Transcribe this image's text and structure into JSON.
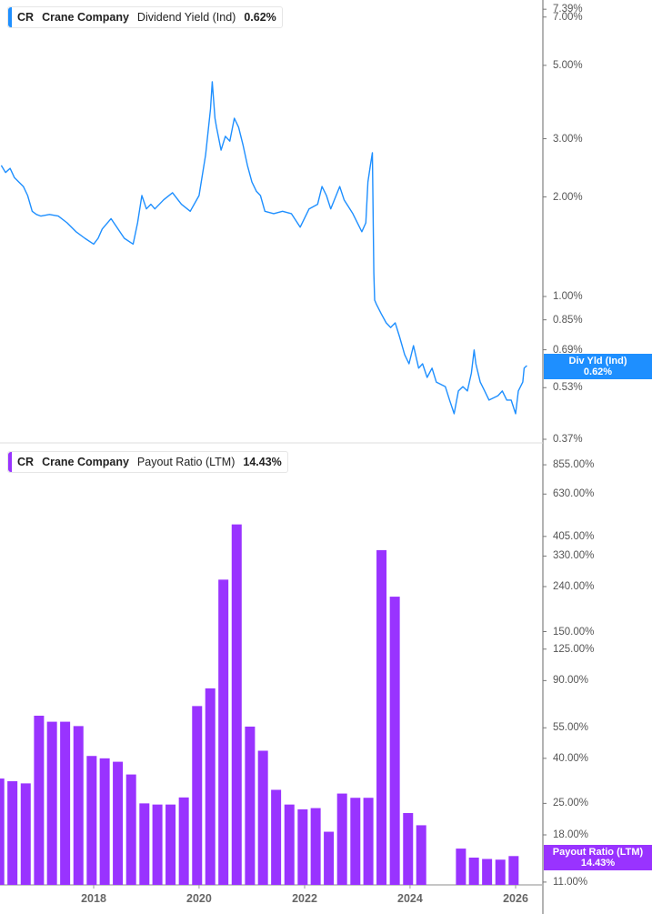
{
  "colors": {
    "yield": "#1e8fff",
    "payout": "#9933ff",
    "axis": "#b3b3b3"
  },
  "top_legend": {
    "ticker": "CR",
    "company": "Crane Company",
    "metric": "Dividend Yield (Ind)",
    "value": "0.62%"
  },
  "bottom_legend": {
    "ticker": "CR",
    "company": "Crane Company",
    "metric": "Payout Ratio (LTM)",
    "value": "14.43%"
  },
  "top_badge": {
    "label": "Div Yld (Ind)",
    "value": "0.62%"
  },
  "bottom_badge": {
    "label": "Payout Ratio (LTM)",
    "value": "14.43%"
  },
  "chart_data": [
    {
      "type": "line",
      "scale": "log",
      "ylim": [
        0.37,
        7.39
      ],
      "yticks": [
        "7.39%",
        "7.00%",
        "5.00%",
        "3.00%",
        "2.00%",
        "1.00%",
        "0.85%",
        "0.69%",
        "0.53%",
        "0.37%"
      ],
      "ytick_values": [
        7.39,
        7.0,
        5.0,
        3.0,
        2.0,
        1.0,
        0.85,
        0.69,
        0.53,
        0.37
      ],
      "series": [
        {
          "name": "Dividend Yield (Ind)",
          "points": [
            [
              "2016-04-01",
              2.49
            ],
            [
              "2016-05-01",
              2.37
            ],
            [
              "2016-06-01",
              2.44
            ],
            [
              "2016-07-01",
              2.29
            ],
            [
              "2016-08-01",
              2.22
            ],
            [
              "2016-09-01",
              2.15
            ],
            [
              "2016-10-01",
              2.02
            ],
            [
              "2016-11-01",
              1.81
            ],
            [
              "2016-12-01",
              1.77
            ],
            [
              "2017-01-01",
              1.75
            ],
            [
              "2017-03-01",
              1.77
            ],
            [
              "2017-05-01",
              1.75
            ],
            [
              "2017-07-01",
              1.67
            ],
            [
              "2017-09-01",
              1.57
            ],
            [
              "2017-11-01",
              1.5
            ],
            [
              "2018-01-01",
              1.44
            ],
            [
              "2018-02-01",
              1.5
            ],
            [
              "2018-03-01",
              1.6
            ],
            [
              "2018-05-01",
              1.72
            ],
            [
              "2018-08-01",
              1.5
            ],
            [
              "2018-10-01",
              1.44
            ],
            [
              "2018-11-01",
              1.67
            ],
            [
              "2018-12-01",
              2.02
            ],
            [
              "2019-01-01",
              1.84
            ],
            [
              "2019-02-01",
              1.9
            ],
            [
              "2019-03-01",
              1.84
            ],
            [
              "2019-05-01",
              1.96
            ],
            [
              "2019-07-01",
              2.06
            ],
            [
              "2019-09-01",
              1.9
            ],
            [
              "2019-11-01",
              1.81
            ],
            [
              "2020-01-01",
              2.02
            ],
            [
              "2020-02-15",
              2.68
            ],
            [
              "2020-03-20",
              3.69
            ],
            [
              "2020-04-01",
              4.46
            ],
            [
              "2020-04-20",
              3.46
            ],
            [
              "2020-05-01",
              3.25
            ],
            [
              "2020-06-01",
              2.77
            ],
            [
              "2020-07-01",
              3.05
            ],
            [
              "2020-08-01",
              2.95
            ],
            [
              "2020-09-01",
              3.46
            ],
            [
              "2020-10-01",
              3.25
            ],
            [
              "2020-11-01",
              2.86
            ],
            [
              "2020-12-01",
              2.49
            ],
            [
              "2021-01-01",
              2.22
            ],
            [
              "2021-02-01",
              2.08
            ],
            [
              "2021-03-01",
              2.02
            ],
            [
              "2021-04-01",
              1.81
            ],
            [
              "2021-06-01",
              1.78
            ],
            [
              "2021-08-01",
              1.81
            ],
            [
              "2021-10-01",
              1.78
            ],
            [
              "2021-12-01",
              1.62
            ],
            [
              "2022-02-01",
              1.84
            ],
            [
              "2022-04-01",
              1.9
            ],
            [
              "2022-05-01",
              2.15
            ],
            [
              "2022-06-01",
              2.02
            ],
            [
              "2022-07-01",
              1.84
            ],
            [
              "2022-09-01",
              2.15
            ],
            [
              "2022-10-01",
              1.96
            ],
            [
              "2022-12-01",
              1.78
            ],
            [
              "2023-02-01",
              1.57
            ],
            [
              "2023-03-01",
              1.67
            ],
            [
              "2023-03-15",
              2.22
            ],
            [
              "2023-04-01",
              2.49
            ],
            [
              "2023-04-15",
              2.72
            ],
            [
              "2023-04-25",
              1.18
            ],
            [
              "2023-05-01",
              0.975
            ],
            [
              "2023-05-15",
              0.944
            ],
            [
              "2023-06-15",
              0.887
            ],
            [
              "2023-07-20",
              0.832
            ],
            [
              "2023-08-20",
              0.806
            ],
            [
              "2023-09-20",
              0.832
            ],
            [
              "2023-10-20",
              0.757
            ],
            [
              "2023-11-25",
              0.667
            ],
            [
              "2023-12-25",
              0.626
            ],
            [
              "2024-01-25",
              0.71
            ],
            [
              "2024-03-01",
              0.607
            ],
            [
              "2024-03-28",
              0.626
            ],
            [
              "2024-04-28",
              0.569
            ],
            [
              "2024-06-01",
              0.607
            ],
            [
              "2024-07-01",
              0.551
            ],
            [
              "2024-09-01",
              0.534
            ],
            [
              "2024-10-01",
              0.486
            ],
            [
              "2024-11-01",
              0.442
            ],
            [
              "2024-12-01",
              0.518
            ],
            [
              "2025-01-01",
              0.534
            ],
            [
              "2025-02-01",
              0.518
            ],
            [
              "2025-03-01",
              0.587
            ],
            [
              "2025-03-20",
              0.689
            ],
            [
              "2025-04-01",
              0.626
            ],
            [
              "2025-05-01",
              0.551
            ],
            [
              "2025-06-01",
              0.518
            ],
            [
              "2025-07-01",
              0.486
            ],
            [
              "2025-09-01",
              0.501
            ],
            [
              "2025-10-01",
              0.518
            ],
            [
              "2025-11-01",
              0.486
            ],
            [
              "2025-12-01",
              0.486
            ],
            [
              "2026-01-01",
              0.442
            ],
            [
              "2026-01-20",
              0.518
            ],
            [
              "2026-02-20",
              0.551
            ],
            [
              "2026-03-01",
              0.607
            ],
            [
              "2026-03-20",
              0.618
            ]
          ]
        }
      ]
    },
    {
      "type": "bar",
      "scale": "log",
      "ylim": [
        11,
        855
      ],
      "yticks": [
        "855.00%",
        "630.00%",
        "405.00%",
        "330.00%",
        "240.00%",
        "150.00%",
        "125.00%",
        "90.00%",
        "55.00%",
        "40.00%",
        "25.00%",
        "18.00%",
        "11.00%"
      ],
      "ytick_values": [
        855,
        630,
        405,
        330,
        240,
        150,
        125,
        90,
        55,
        40,
        25,
        18,
        11
      ],
      "xticks": [
        "2018",
        "2020",
        "2022",
        "2024",
        "2026"
      ],
      "series": [
        {
          "name": "Payout Ratio (LTM)",
          "points": [
            [
              "2016-03-31",
              32.4
            ],
            [
              "2016-06-30",
              31.5
            ],
            [
              "2016-09-30",
              30.8
            ],
            [
              "2016-12-31",
              62.4
            ],
            [
              "2017-03-31",
              58.6
            ],
            [
              "2017-06-30",
              58.6
            ],
            [
              "2017-09-30",
              56.0
            ],
            [
              "2017-12-31",
              41.0
            ],
            [
              "2018-03-31",
              40.0
            ],
            [
              "2018-06-30",
              38.6
            ],
            [
              "2018-09-30",
              33.8
            ],
            [
              "2018-12-31",
              25.0
            ],
            [
              "2019-03-31",
              24.7
            ],
            [
              "2019-06-30",
              24.7
            ],
            [
              "2019-09-30",
              26.6
            ],
            [
              "2019-12-31",
              69.0
            ],
            [
              "2020-03-31",
              83.0
            ],
            [
              "2020-06-30",
              258.0
            ],
            [
              "2020-09-30",
              459.0
            ],
            [
              "2020-12-31",
              55.7
            ],
            [
              "2021-03-31",
              43.3
            ],
            [
              "2021-06-30",
              28.8
            ],
            [
              "2021-09-30",
              24.7
            ],
            [
              "2021-12-31",
              23.5
            ],
            [
              "2022-03-31",
              23.8
            ],
            [
              "2022-06-30",
              18.6
            ],
            [
              "2022-09-30",
              27.7
            ],
            [
              "2022-12-31",
              26.5
            ],
            [
              "2023-03-31",
              26.5
            ],
            [
              "2023-06-30",
              351.0
            ],
            [
              "2023-09-30",
              216.0
            ],
            [
              "2023-12-31",
              22.6
            ],
            [
              "2024-03-31",
              19.9
            ],
            [
              "2024-12-31",
              15.6
            ],
            [
              "2025-03-31",
              14.2
            ],
            [
              "2025-06-30",
              14.0
            ],
            [
              "2025-09-30",
              13.9
            ],
            [
              "2025-12-31",
              14.43
            ]
          ]
        }
      ]
    }
  ]
}
